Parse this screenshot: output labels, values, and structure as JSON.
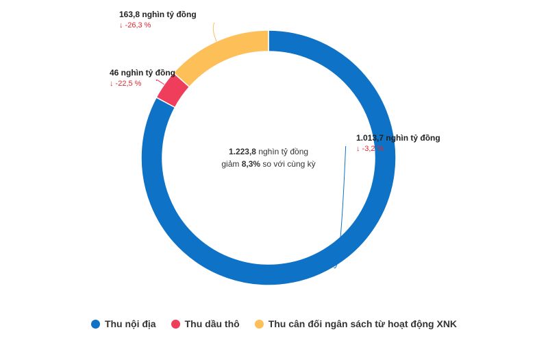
{
  "chart_data": {
    "type": "pie",
    "donut": true,
    "series": [
      {
        "name": "Thu nội địa",
        "value": 1013.7,
        "value_label": "1.013,7 nghìn tỷ đồng",
        "change_label": "↓ -3,2 %",
        "color": "#0e72c6"
      },
      {
        "name": "Thu dầu thô",
        "value": 46,
        "value_label": "46 nghìn tỷ đồng",
        "change_label": "↓ -22,5 %",
        "color": "#ef3e5b"
      },
      {
        "name": "Thu cân đối ngân sách từ hoạt động XNK",
        "value": 163.8,
        "value_label": "163,8 nghìn tỷ đồng",
        "change_label": "↓ -26,3 %",
        "color": "#fdbf58"
      }
    ],
    "center": {
      "total": "1.223,8",
      "total_suffix": " nghìn tỷ đồng",
      "line2_prefix": "giảm ",
      "line2_value": "8,3%",
      "line2_suffix": " so với cùng kỳ"
    },
    "legend_position": "bottom"
  }
}
